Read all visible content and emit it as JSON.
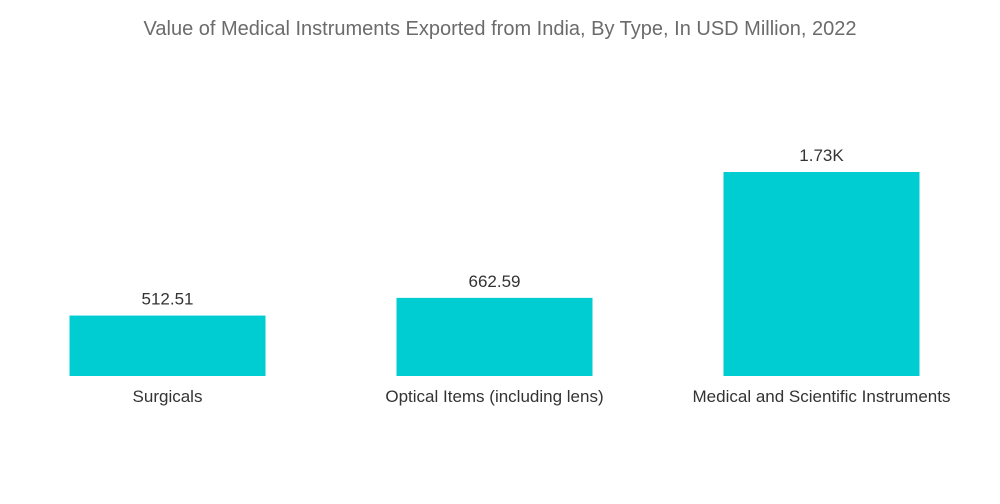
{
  "title": "Value of Medical Instruments Exported from India, By Type, In USD Million, 2022",
  "colors": {
    "bar": "#00cdd1",
    "text": "#333333",
    "title": "#6b6b6b"
  },
  "chart_data": {
    "type": "bar",
    "title": "Value of Medical Instruments Exported from India, By Type, In USD Million, 2022",
    "categories": [
      "Surgicals",
      "Optical Items (including lens)",
      "Medical and Scientific Instruments"
    ],
    "values": [
      512.51,
      662.59,
      1730
    ],
    "data_labels": [
      "512.51",
      "662.59",
      "1.73K"
    ],
    "xlabel": "",
    "ylabel": "",
    "ylim": [
      0,
      1730
    ],
    "grid": false,
    "legend": "none"
  }
}
